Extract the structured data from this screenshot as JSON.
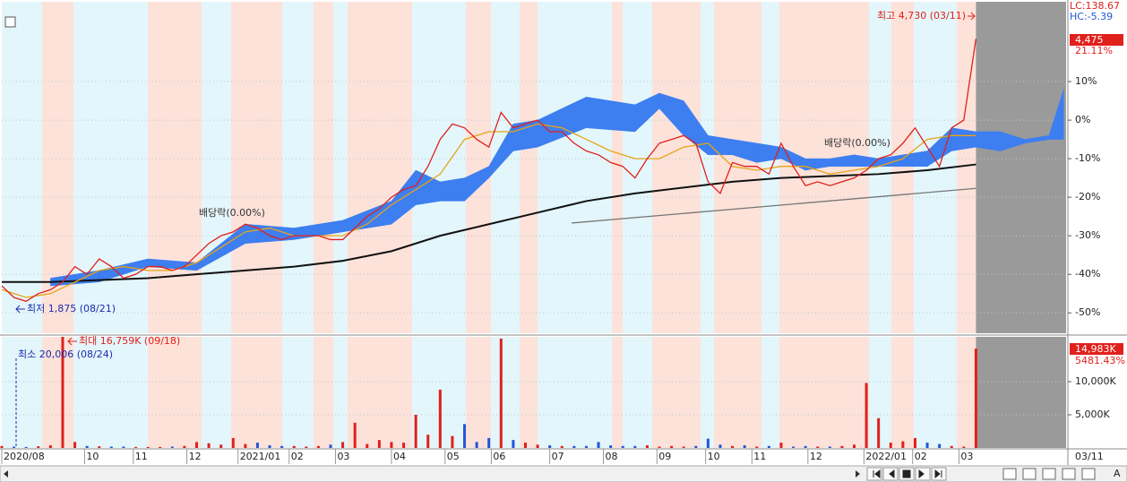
{
  "chart_data": [
    {
      "type": "line",
      "xlim": [
        0,
        437
      ],
      "ylim": [
        -55.3,
        30.7
      ],
      "yticks": [
        {
          "value": 10,
          "label": "10%"
        },
        {
          "value": 0,
          "label": "0%"
        },
        {
          "value": -10,
          "label": "-10%"
        },
        {
          "value": -20,
          "label": "-20%"
        },
        {
          "value": -30,
          "label": "-30%"
        },
        {
          "value": -40,
          "label": "-40%"
        },
        {
          "value": -50,
          "label": "-50%"
        }
      ],
      "xticks": [
        {
          "value": 0,
          "label": "2020/08"
        },
        {
          "value": 34,
          "label": "10"
        },
        {
          "value": 54,
          "label": "11"
        },
        {
          "value": 76,
          "label": "12"
        },
        {
          "value": 97,
          "label": "2021/01"
        },
        {
          "value": 118,
          "label": "02"
        },
        {
          "value": 137,
          "label": "03"
        },
        {
          "value": 160,
          "label": "04"
        },
        {
          "value": 182,
          "label": "05"
        },
        {
          "value": 201,
          "label": "06"
        },
        {
          "value": 225,
          "label": "07"
        },
        {
          "value": 247,
          "label": "08"
        },
        {
          "value": 269,
          "label": "09"
        },
        {
          "value": 289,
          "label": "10"
        },
        {
          "value": 308,
          "label": "11"
        },
        {
          "value": 331,
          "label": "12"
        },
        {
          "value": 354,
          "label": "2022/01"
        },
        {
          "value": 374,
          "label": "02"
        },
        {
          "value": 393,
          "label": "03"
        }
      ],
      "last_date": "03/11",
      "header": {
        "lc": "LC:138.67",
        "hc": "HC:-5.39",
        "price": "4,475",
        "change": "21.11%"
      },
      "series": [
        {
          "color": "#e0201b",
          "x": [
            0,
            5,
            10,
            15,
            20,
            25,
            30,
            35,
            40,
            45,
            50,
            55,
            60,
            65,
            70,
            75,
            80,
            85,
            90,
            95,
            100,
            105,
            110,
            115,
            120,
            125,
            130,
            135,
            140,
            145,
            150,
            155,
            160,
            165,
            170,
            175,
            180,
            185,
            190,
            195,
            200,
            205,
            210,
            215,
            220,
            225,
            230,
            235,
            240,
            245,
            250,
            255,
            260,
            265,
            270,
            275,
            280,
            285,
            290,
            295,
            300,
            305,
            310,
            315,
            320,
            325,
            330,
            335,
            340,
            345,
            350,
            355,
            360,
            365,
            370,
            375,
            380,
            385,
            390,
            395,
            400
          ],
          "values": [
            -43,
            -46,
            -47,
            -45,
            -44,
            -42,
            -38,
            -40,
            -36,
            -38,
            -41,
            -40,
            -38,
            -38,
            -39,
            -38,
            -35,
            -32,
            -30,
            -29,
            -27,
            -28,
            -30,
            -31,
            -30,
            -30,
            -30,
            -31,
            -31,
            -28,
            -25,
            -23,
            -20,
            -18,
            -17,
            -12,
            -5,
            -1,
            -2,
            -5,
            -7,
            2,
            -2,
            -1,
            0,
            -3,
            -3,
            -6,
            -8,
            -9,
            -11,
            -12,
            -15,
            -10,
            -6,
            -5,
            -4,
            -6,
            -16,
            -19,
            -11,
            -12,
            -12,
            -14,
            -6,
            -12,
            -17,
            -16,
            -17,
            -16,
            -15,
            -13,
            -10,
            -9,
            -6,
            -2,
            -7,
            -12,
            -2,
            0,
            21.11
          ]
        },
        {
          "color": "#e8a317",
          "x": [
            0,
            10,
            20,
            30,
            40,
            50,
            60,
            70,
            80,
            90,
            100,
            110,
            120,
            130,
            140,
            150,
            160,
            170,
            180,
            190,
            200,
            210,
            220,
            230,
            240,
            250,
            260,
            270,
            280,
            290,
            300,
            310,
            320,
            330,
            340,
            350,
            360,
            370,
            380,
            390,
            400
          ],
          "values": [
            -44,
            -46,
            -45,
            -42,
            -39,
            -38,
            -39,
            -39,
            -37,
            -33,
            -29,
            -28,
            -30,
            -30,
            -30,
            -27,
            -22,
            -18,
            -14,
            -5,
            -3,
            -3,
            -1,
            -2,
            -5,
            -8,
            -10,
            -10,
            -7,
            -6,
            -12,
            -13,
            -12,
            -12,
            -14,
            -13,
            -12,
            -10,
            -5,
            -4,
            -4
          ]
        },
        {
          "color": "#111111",
          "x": [
            0,
            20,
            40,
            60,
            80,
            100,
            120,
            140,
            160,
            180,
            200,
            220,
            240,
            260,
            280,
            300,
            320,
            340,
            360,
            380,
            400
          ],
          "values": [
            -42,
            -42,
            -41.5,
            -41,
            -40,
            -39,
            -38,
            -36.5,
            -34,
            -30,
            -27,
            -24,
            -21,
            -19,
            -17.5,
            -16,
            -15,
            -14.5,
            -14,
            -13,
            -11.5
          ]
        },
        {
          "color": "#777777",
          "x": [
            234,
            400
          ],
          "values": [
            -26.7,
            -17.7
          ]
        }
      ],
      "cloud": {
        "color": "#3d7ef0",
        "x": [
          20,
          40,
          60,
          80,
          100,
          120,
          140,
          160,
          170,
          180,
          190,
          200,
          210,
          220,
          240,
          260,
          270,
          280,
          290,
          300,
          310,
          320,
          330,
          340,
          350,
          360,
          370,
          380,
          390,
          400,
          410,
          420,
          430,
          436
        ],
        "upper": [
          -41,
          -39,
          -36,
          -37,
          -27,
          -28,
          -26,
          -21,
          -13,
          -16,
          -15,
          -12,
          -1,
          0,
          6,
          4,
          7,
          5,
          -4,
          -5,
          -6,
          -7,
          -10,
          -10,
          -9,
          -10,
          -9,
          -8,
          -2,
          -3,
          -3,
          -5,
          -4,
          8
        ],
        "lower": [
          -43,
          -42,
          -38,
          -39,
          -32,
          -31,
          -29,
          -27,
          -22,
          -21,
          -21,
          -15,
          -8,
          -7,
          -2,
          -3,
          3,
          -4,
          -9,
          -9,
          -11,
          -10,
          -13,
          -12,
          -12,
          -12,
          -12,
          -12,
          -8,
          -7,
          -8,
          -6,
          -5,
          -5
        ]
      },
      "annotations": [
        "최고 4,730 (03/11)",
        "최저 1,875 (08/21)",
        "배당락(0.00%)",
        "배당락(0.00%)"
      ]
    },
    {
      "type": "bar",
      "xlim": [
        0,
        437
      ],
      "ylim": [
        0,
        16760
      ],
      "yticks": [
        {
          "value": 5000,
          "label": "5,000K"
        },
        {
          "value": 10000,
          "label": "10,000K"
        }
      ],
      "up_color": "#e0201b",
      "down_color": "#2455d8",
      "header": {
        "volume": "14,983K",
        "change": "5481.43%"
      },
      "x": [
        0,
        5,
        10,
        15,
        20,
        25,
        30,
        35,
        40,
        45,
        50,
        55,
        60,
        65,
        70,
        75,
        80,
        85,
        90,
        95,
        100,
        105,
        110,
        115,
        120,
        125,
        130,
        135,
        140,
        145,
        150,
        155,
        160,
        165,
        170,
        175,
        180,
        185,
        190,
        195,
        200,
        205,
        210,
        215,
        220,
        225,
        230,
        235,
        240,
        245,
        250,
        255,
        260,
        265,
        270,
        275,
        280,
        285,
        290,
        295,
        300,
        305,
        310,
        315,
        320,
        325,
        330,
        335,
        340,
        345,
        350,
        355,
        360,
        365,
        370,
        375,
        380,
        385,
        390,
        395,
        400
      ],
      "values": [
        300,
        200,
        150,
        250,
        400,
        16759,
        900,
        300,
        250,
        200,
        200,
        150,
        150,
        150,
        200,
        300,
        900,
        700,
        500,
        1500,
        600,
        800,
        400,
        300,
        300,
        200,
        300,
        500,
        900,
        3800,
        600,
        1200,
        900,
        800,
        5000,
        2000,
        8800,
        1800,
        3600,
        900,
        1500,
        16500,
        1200,
        800,
        500,
        400,
        300,
        300,
        300,
        900,
        400,
        300,
        300,
        400,
        200,
        300,
        200,
        300,
        1400,
        500,
        300,
        400,
        200,
        300,
        800,
        200,
        300,
        200,
        200,
        300,
        500,
        9800,
        4500,
        800,
        1000,
        1500,
        800,
        600,
        300,
        200,
        14983
      ],
      "annotations": [
        "최대 16,759K (09/18)",
        "최소 20,006 (08/24)"
      ]
    }
  ],
  "ui": {
    "scroll_letter": "A"
  }
}
